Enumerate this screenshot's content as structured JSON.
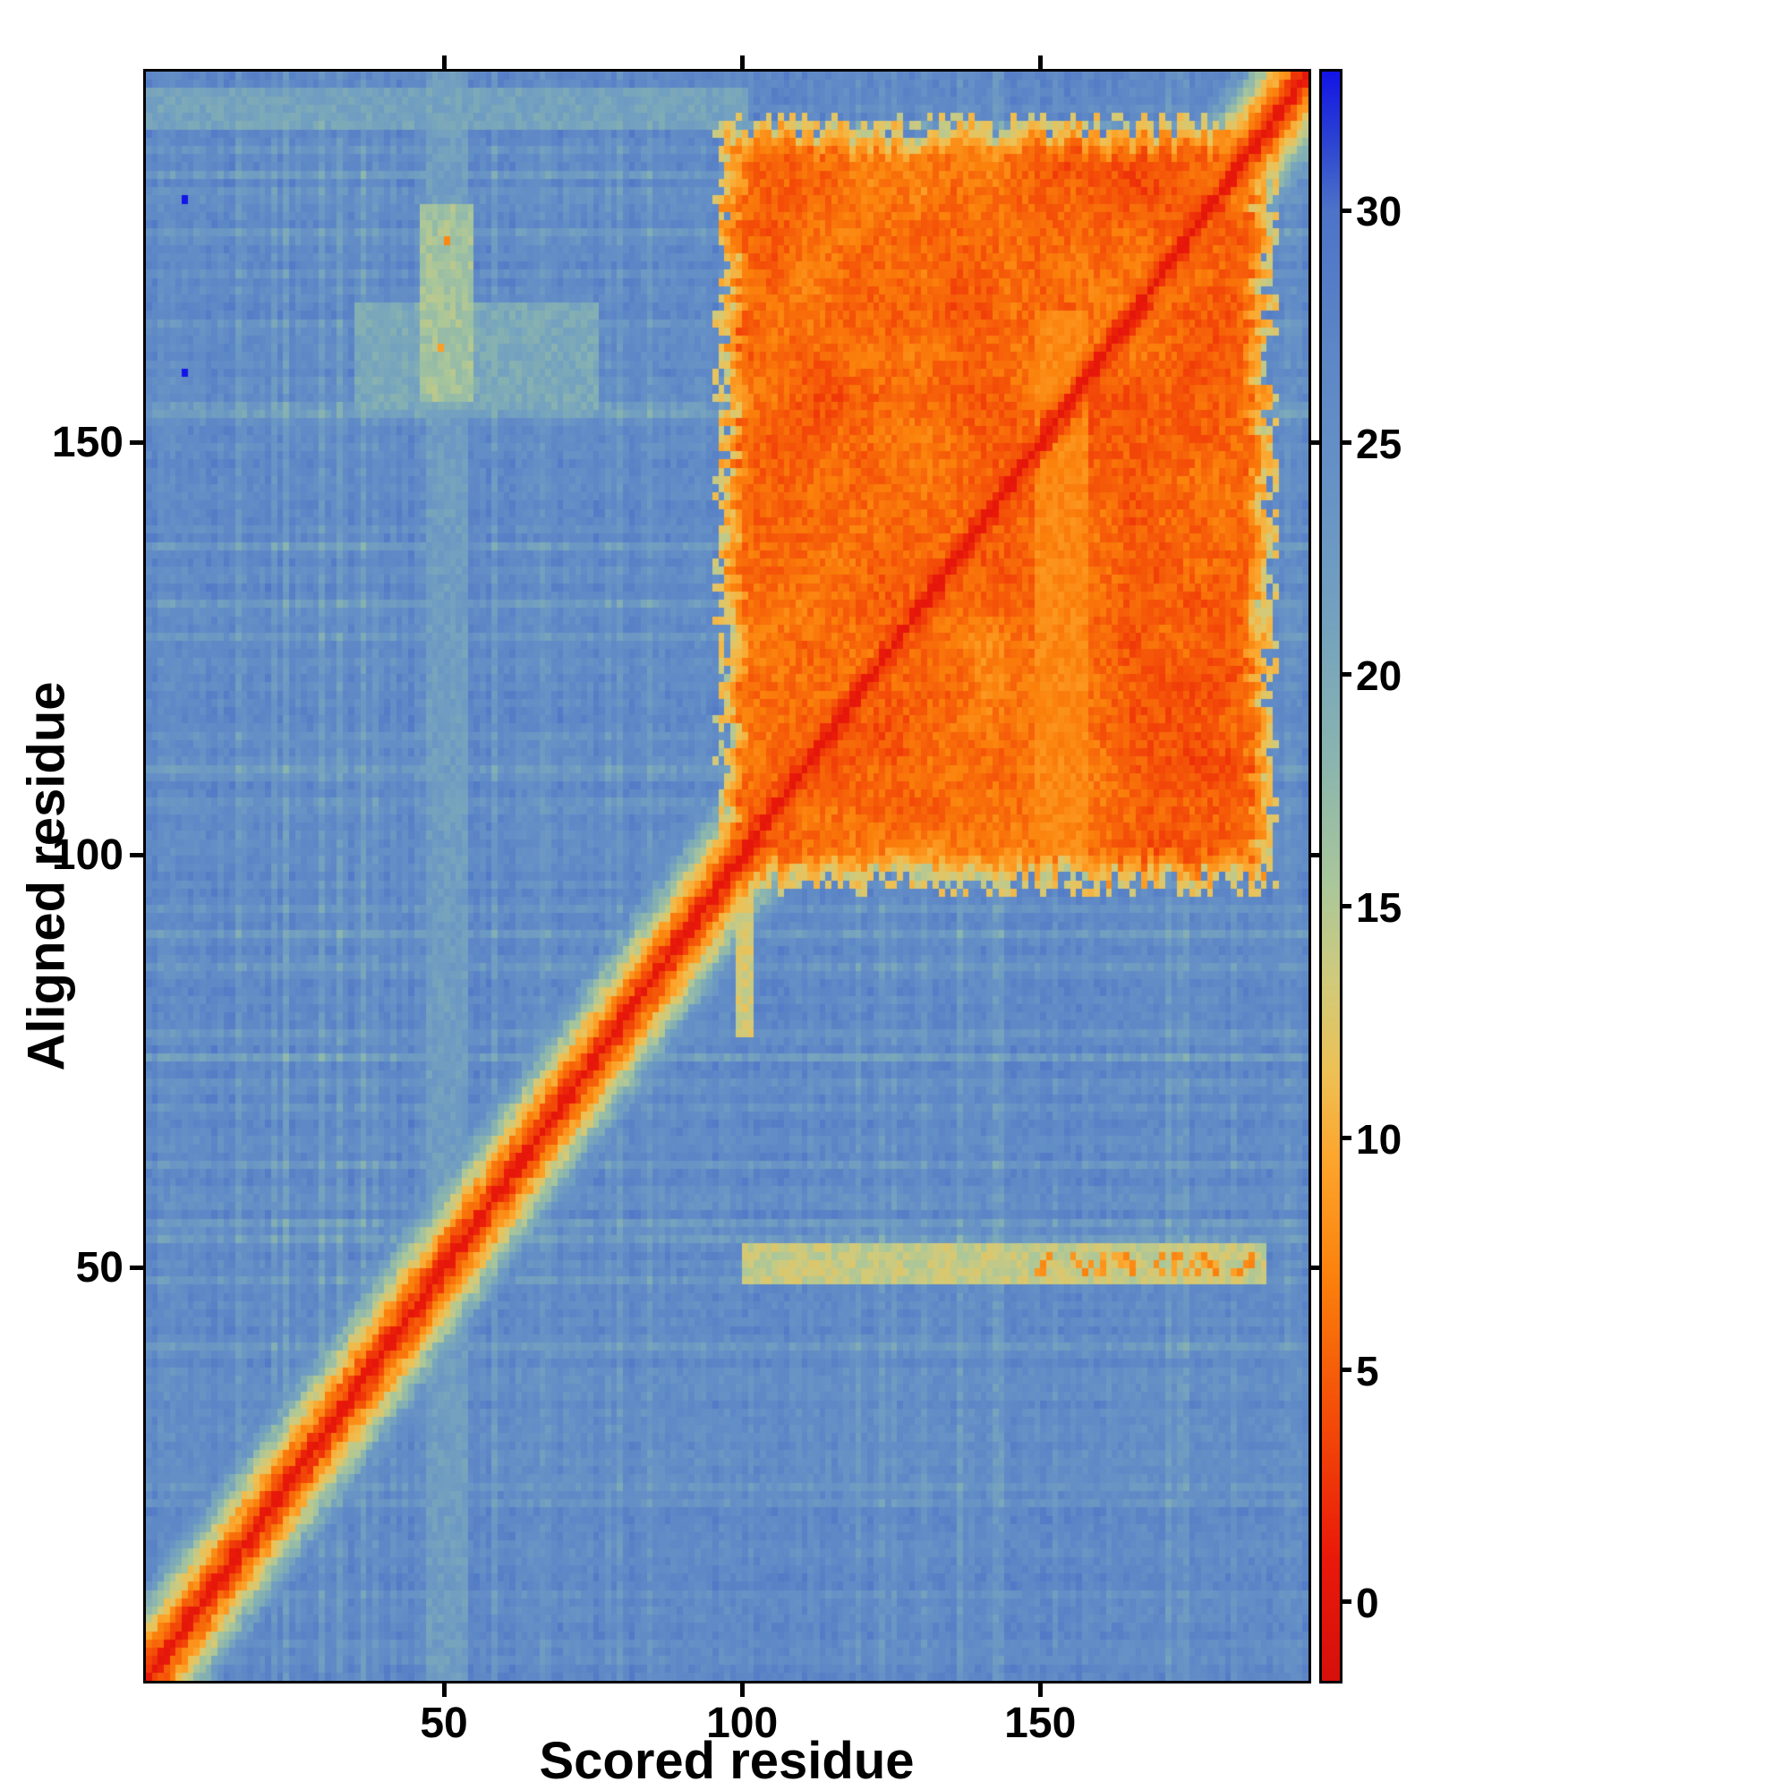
{
  "figure": {
    "background": "#ffffff",
    "frame_color": "#000000"
  },
  "chart_data": {
    "type": "heatmap",
    "title": "",
    "xlabel": "Scored residue",
    "ylabel": "Aligned residue",
    "x_ticks": [
      50,
      100,
      150
    ],
    "y_ticks": [
      50,
      100,
      150
    ],
    "axis_min": 0,
    "axis_max": 195,
    "grid": false,
    "legend_position": "right-colorbar",
    "colorbar": {
      "ticks": [
        0,
        5,
        10,
        15,
        20,
        25,
        30
      ],
      "vmin": -1.7,
      "vmax": 33
    },
    "colormap": [
      {
        "v": -2,
        "c": "#d40f0c"
      },
      {
        "v": 1,
        "c": "#ea1a0a"
      },
      {
        "v": 4,
        "c": "#f44d08"
      },
      {
        "v": 7,
        "c": "#fb810c"
      },
      {
        "v": 9.5,
        "c": "#fda52c"
      },
      {
        "v": 11.5,
        "c": "#edc257"
      },
      {
        "v": 13.5,
        "c": "#cfcb7d"
      },
      {
        "v": 15.5,
        "c": "#aac79b"
      },
      {
        "v": 18,
        "c": "#8cb6ae"
      },
      {
        "v": 21,
        "c": "#75a3bf"
      },
      {
        "v": 24,
        "c": "#6793c6"
      },
      {
        "v": 27,
        "c": "#5d87c6"
      },
      {
        "v": 30,
        "c": "#4d74c8"
      },
      {
        "v": 31.5,
        "c": "#2c44d2"
      },
      {
        "v": 33,
        "c": "#1315e6"
      },
      {
        "v": 34.5,
        "c": "#0909ae"
      }
    ],
    "seed": 1337,
    "regions": {
      "background": {
        "value": 26,
        "noise": 3
      },
      "diagonal_band": {
        "slope": 2.1,
        "width": 15,
        "noise": 4
      },
      "block": {
        "start": 97,
        "end": 187,
        "base": 3,
        "patch_amp": 5.5,
        "noise": 3,
        "edge_boost": 2
      },
      "streaks": [
        {
          "axis": "row",
          "pos": 50,
          "half": 2,
          "from": 100,
          "to": 187,
          "mode": "min",
          "value": 14,
          "prob": 1
        },
        {
          "axis": "row",
          "pos": 50,
          "half": 1,
          "from": 148,
          "to": 185,
          "mode": "min",
          "value": 8.5,
          "prob": 0.35
        },
        {
          "axis": "col",
          "pos": 50,
          "half": 3,
          "from": 0,
          "to": 195,
          "mode": "min",
          "value": 22,
          "prob": 1
        },
        {
          "axis": "col",
          "pos": 50,
          "half": 4,
          "from": 155,
          "to": 178,
          "mode": "min",
          "value": 16,
          "prob": 1
        },
        {
          "axis": "col",
          "pos": 100,
          "half": 1,
          "from": 78,
          "to": 96,
          "mode": "min",
          "value": 13,
          "prob": 1
        },
        {
          "axis": "col",
          "pos": 153,
          "half": 4,
          "from": 100,
          "to": 165,
          "mode": "set",
          "value": 7.5,
          "prob": 1
        },
        {
          "axis": "row",
          "pos": 190,
          "half": 2,
          "from": 0,
          "to": 100,
          "mode": "min",
          "value": 21,
          "prob": 1
        },
        {
          "axis": "row",
          "pos": 160,
          "half": 6,
          "from": 35,
          "to": 75,
          "mode": "min",
          "value": 20,
          "prob": 1
        }
      ],
      "dots": [
        {
          "x": 6,
          "y": 179,
          "v": 33
        },
        {
          "x": 6,
          "y": 158,
          "v": 33
        },
        {
          "x": 50,
          "y": 174,
          "v": 7.5
        },
        {
          "x": 49,
          "y": 161,
          "v": 9
        }
      ]
    }
  }
}
